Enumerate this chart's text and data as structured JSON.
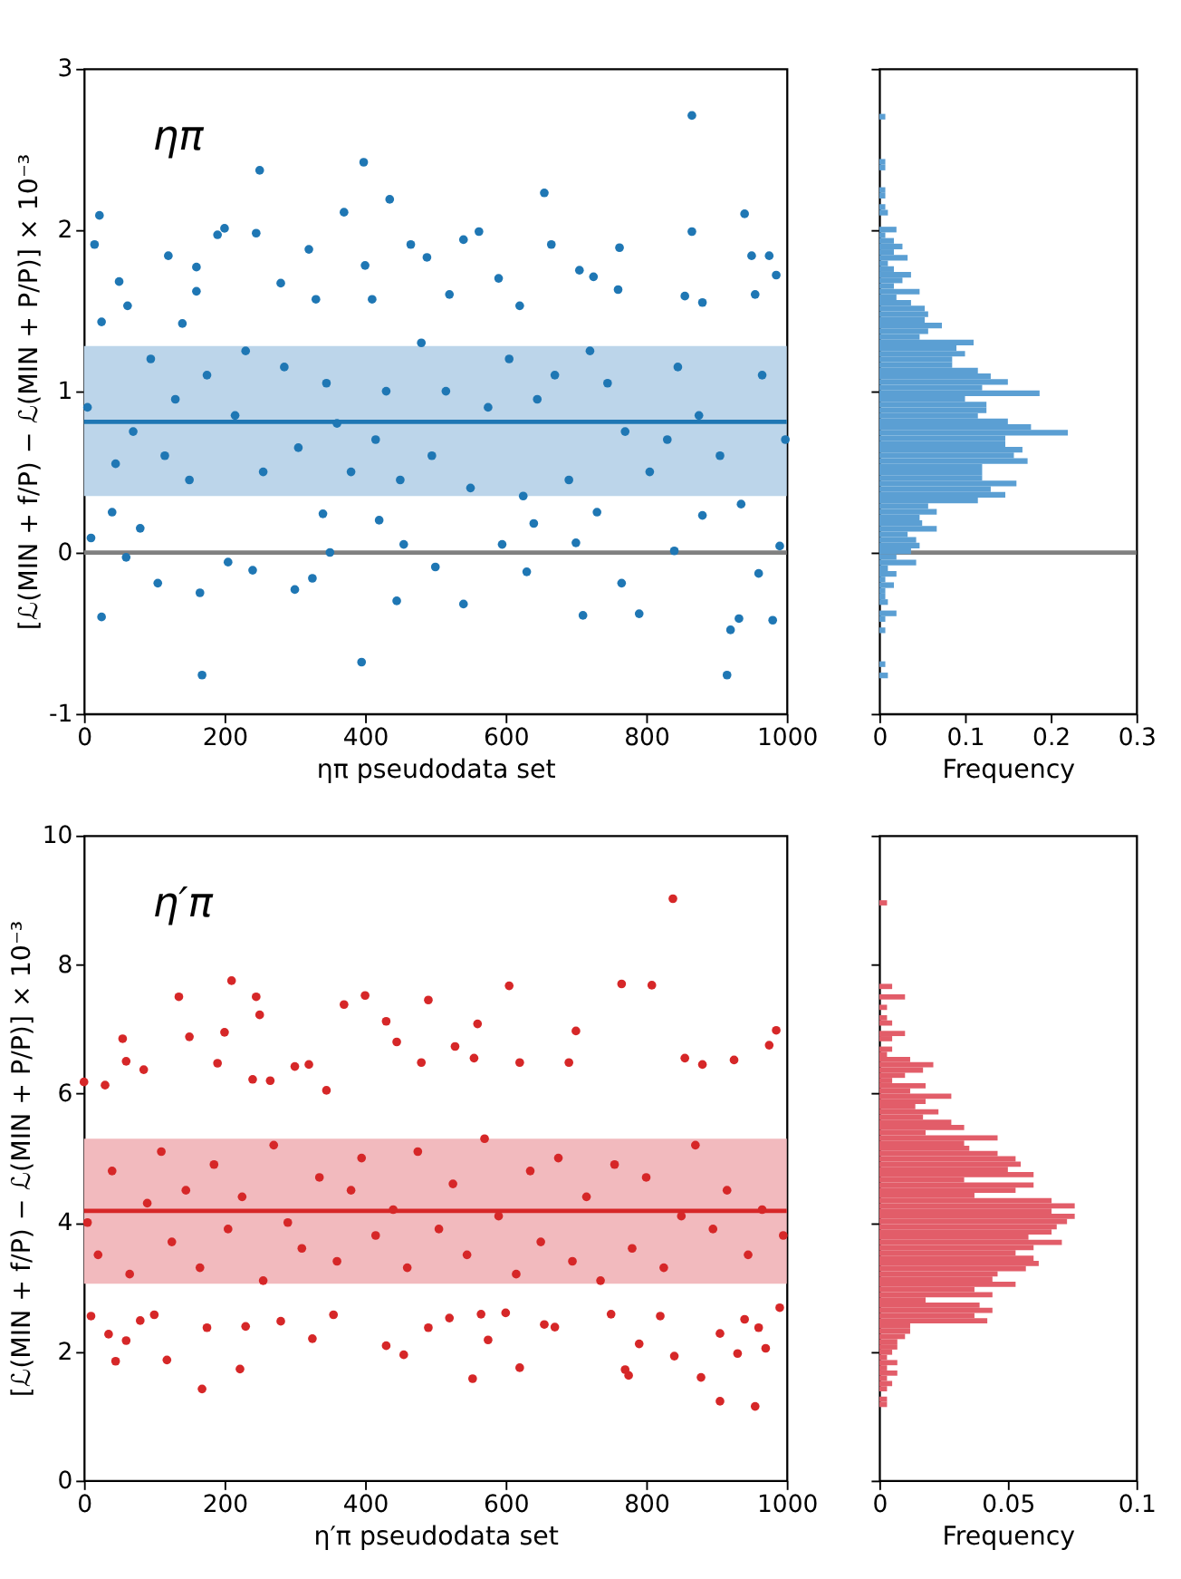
{
  "chart_data": [
    {
      "type": "scatter",
      "annotations": [
        "ηπ"
      ],
      "xlabel": "ηπ pseudodata set",
      "ylabel": "[ℒ(MIN + f/P) − ℒ(MIN + P/P)] × 10⁻³",
      "color": "#1f77b4",
      "marker": "circle",
      "grid": false,
      "xlim": [
        0,
        1000
      ],
      "xticks": [
        0,
        200,
        400,
        600,
        800,
        1000
      ],
      "ylim": [
        -1,
        3
      ],
      "yticks": [
        -1,
        0,
        1,
        2,
        3
      ],
      "bands": [
        {
          "axis": "y",
          "from": 0.35,
          "to": 1.28,
          "color": "#bcd5ea"
        }
      ],
      "ref_lines": [
        {
          "axis": "y",
          "value": 0,
          "color": "#808080"
        },
        {
          "axis": "y",
          "value": 0.81,
          "color": "#1f77b4"
        }
      ],
      "x": [
        865,
        398,
        250,
        435,
        655,
        22,
        370,
        940,
        200,
        190,
        245,
        562,
        865,
        15,
        465,
        540,
        665,
        762,
        320,
        120,
        488,
        950,
        975,
        160,
        400,
        705,
        985,
        50,
        280,
        590,
        725,
        955,
        160,
        520,
        760,
        855,
        62,
        410,
        620,
        880,
        25,
        140,
        330,
        25,
        168,
        165,
        105,
        60,
        300,
        325,
        445,
        395,
        540,
        630,
        710,
        765,
        790,
        915,
        920,
        932,
        960,
        980,
        500,
        240,
        10,
        205,
        350,
        455,
        595,
        700,
        840,
        990,
        640,
        40,
        80,
        340,
        420,
        730,
        880,
        5,
        45,
        70,
        95,
        115,
        130,
        150,
        175,
        215,
        230,
        255,
        285,
        305,
        345,
        360,
        380,
        415,
        430,
        450,
        480,
        495,
        515,
        550,
        575,
        605,
        625,
        645,
        670,
        690,
        720,
        745,
        770,
        805,
        830,
        845,
        875,
        905,
        935,
        965,
        998
      ],
      "values": [
        2.71,
        2.42,
        2.37,
        2.19,
        2.23,
        2.09,
        2.11,
        2.1,
        2.01,
        1.97,
        1.98,
        1.99,
        1.99,
        1.91,
        1.91,
        1.94,
        1.91,
        1.89,
        1.88,
        1.84,
        1.83,
        1.84,
        1.84,
        1.77,
        1.78,
        1.75,
        1.72,
        1.68,
        1.67,
        1.7,
        1.71,
        1.6,
        1.62,
        1.6,
        1.63,
        1.59,
        1.53,
        1.57,
        1.53,
        1.55,
        1.43,
        1.42,
        1.57,
        -0.4,
        -0.76,
        -0.25,
        -0.19,
        -0.03,
        -0.23,
        -0.16,
        -0.3,
        -0.68,
        -0.32,
        -0.12,
        -0.39,
        -0.19,
        -0.38,
        -0.76,
        -0.48,
        -0.41,
        -0.13,
        -0.42,
        -0.09,
        -0.11,
        0.09,
        -0.06,
        0.0,
        0.05,
        0.05,
        0.06,
        0.01,
        0.04,
        0.18,
        0.25,
        0.15,
        0.24,
        0.2,
        0.25,
        0.23,
        0.9,
        0.55,
        0.75,
        1.2,
        0.6,
        0.95,
        0.45,
        1.1,
        0.85,
        1.25,
        0.5,
        1.15,
        0.65,
        1.05,
        0.8,
        0.5,
        0.7,
        1.0,
        0.45,
        1.3,
        0.6,
        1.0,
        0.4,
        0.9,
        1.2,
        0.35,
        0.95,
        1.1,
        0.45,
        1.25,
        1.05,
        0.75,
        0.5,
        0.7,
        1.15,
        0.85,
        0.6,
        0.3,
        1.1,
        0.7
      ]
    },
    {
      "type": "histogram",
      "orientation": "horizontal",
      "xlabel": "Frequency",
      "color": "#5b9fd3",
      "grid": false,
      "tick_labels": "x",
      "xlim": [
        0,
        0.3
      ],
      "xticks": [
        0,
        0.1,
        0.2,
        0.3
      ],
      "ylim": [
        -1,
        3
      ],
      "yticks": [
        {
          "value": -1,
          "label": null
        },
        {
          "value": 0,
          "label": null
        },
        {
          "value": 1,
          "label": null
        },
        {
          "value": 2,
          "label": null
        },
        {
          "value": 3,
          "label": null
        }
      ],
      "ref_lines": [
        {
          "axis": "y",
          "value": 0,
          "color": "#808080"
        }
      ],
      "bins": [
        -0.78,
        -0.745,
        -0.71,
        -0.675,
        -0.64,
        -0.605,
        -0.57,
        -0.535,
        -0.5,
        -0.465,
        -0.43,
        -0.395,
        -0.36,
        -0.325,
        -0.29,
        -0.255,
        -0.22,
        -0.185,
        -0.15,
        -0.115,
        -0.08,
        -0.045,
        -0.01,
        0.025,
        0.06,
        0.095,
        0.13,
        0.165,
        0.2,
        0.235,
        0.27,
        0.305,
        0.34,
        0.375,
        0.41,
        0.445,
        0.48,
        0.515,
        0.55,
        0.585,
        0.62,
        0.655,
        0.69,
        0.725,
        0.76,
        0.795,
        0.83,
        0.865,
        0.9,
        0.935,
        0.97,
        1.005,
        1.04,
        1.075,
        1.11,
        1.145,
        1.18,
        1.215,
        1.25,
        1.285,
        1.32,
        1.355,
        1.39,
        1.425,
        1.46,
        1.495,
        1.53,
        1.565,
        1.6,
        1.635,
        1.67,
        1.705,
        1.74,
        1.775,
        1.81,
        1.845,
        1.88,
        1.915,
        1.95,
        1.985,
        2.02,
        2.055,
        2.09,
        2.125,
        2.16,
        2.195,
        2.23,
        2.265,
        2.3,
        2.335,
        2.37,
        2.405,
        2.44,
        2.475,
        2.51,
        2.545,
        2.58,
        2.615,
        2.65,
        2.685,
        2.72
      ],
      "values": [
        0.01,
        0,
        0.007,
        0,
        0,
        0,
        0,
        0,
        0.007,
        0,
        0.007,
        0.02,
        0,
        0.01,
        0.007,
        0.007,
        0.017,
        0.007,
        0.02,
        0.01,
        0.043,
        0.02,
        0.037,
        0.047,
        0.043,
        0.033,
        0.067,
        0.05,
        0.047,
        0.067,
        0.057,
        0.115,
        0.147,
        0.13,
        0.16,
        0.12,
        0.12,
        0.12,
        0.173,
        0.157,
        0.167,
        0.147,
        0.147,
        0.22,
        0.177,
        0.15,
        0.115,
        0.125,
        0.125,
        0.1,
        0.187,
        0.12,
        0.15,
        0.13,
        0.115,
        0.085,
        0.085,
        0.1,
        0.09,
        0.11,
        0.047,
        0.057,
        0.073,
        0.053,
        0.057,
        0.053,
        0.037,
        0.02,
        0.047,
        0.017,
        0.027,
        0.037,
        0.017,
        0.01,
        0.033,
        0.017,
        0.027,
        0.017,
        0.007,
        0.02,
        0,
        0,
        0.01,
        0.007,
        0,
        0.007,
        0.007,
        0,
        0,
        0,
        0.007,
        0.007,
        0,
        0,
        0,
        0,
        0,
        0,
        0,
        0.007
      ]
    },
    {
      "type": "scatter",
      "annotations": [
        "η′π"
      ],
      "xlabel": "η′π pseudodata set",
      "ylabel": "[ℒ(MIN + f/P) − ℒ(MIN + P/P)] × 10⁻³",
      "color": "#d62728",
      "marker": "circle",
      "grid": false,
      "xlim": [
        0,
        1000
      ],
      "xticks": [
        0,
        200,
        400,
        600,
        800,
        1000
      ],
      "ylim": [
        0,
        10
      ],
      "yticks": [
        0,
        2,
        4,
        6,
        8,
        10
      ],
      "bands": [
        {
          "axis": "y",
          "from": 3.05,
          "to": 5.3,
          "color": "#f2babe"
        }
      ],
      "ref_lines": [
        {
          "axis": "y",
          "value": 4.18,
          "color": "#d62728"
        }
      ],
      "x": [
        838,
        210,
        135,
        245,
        400,
        370,
        490,
        605,
        765,
        808,
        250,
        430,
        560,
        445,
        150,
        200,
        55,
        700,
        985,
        975,
        528,
        555,
        620,
        690,
        60,
        85,
        480,
        855,
        880,
        925,
        300,
        320,
        0,
        30,
        190,
        240,
        265,
        345,
        168,
        553,
        955,
        905,
        222,
        620,
        770,
        775,
        878,
        118,
        45,
        455,
        430,
        840,
        930,
        970,
        325,
        575,
        35,
        60,
        175,
        230,
        490,
        655,
        670,
        790,
        905,
        960,
        10,
        80,
        100,
        280,
        355,
        520,
        565,
        600,
        750,
        820,
        940,
        990,
        5,
        20,
        40,
        65,
        90,
        110,
        125,
        145,
        165,
        185,
        205,
        225,
        255,
        270,
        290,
        310,
        335,
        360,
        380,
        395,
        415,
        440,
        460,
        475,
        505,
        525,
        545,
        570,
        590,
        615,
        635,
        650,
        675,
        695,
        715,
        735,
        755,
        780,
        800,
        825,
        850,
        870,
        895,
        915,
        945,
        965,
        995
      ],
      "values": [
        9.02,
        7.75,
        7.5,
        7.5,
        7.52,
        7.38,
        7.45,
        7.67,
        7.7,
        7.68,
        7.22,
        7.12,
        7.08,
        6.8,
        6.88,
        6.95,
        6.85,
        6.97,
        6.98,
        6.75,
        6.73,
        6.55,
        6.48,
        6.48,
        6.5,
        6.37,
        6.48,
        6.55,
        6.45,
        6.52,
        6.42,
        6.45,
        6.18,
        6.13,
        6.47,
        6.22,
        6.2,
        6.05,
        1.42,
        1.58,
        1.15,
        1.23,
        1.73,
        1.75,
        1.72,
        1.63,
        1.6,
        1.87,
        1.85,
        1.95,
        2.09,
        1.93,
        1.97,
        2.05,
        2.2,
        2.18,
        2.27,
        2.17,
        2.37,
        2.39,
        2.37,
        2.42,
        2.38,
        2.12,
        2.28,
        2.37,
        2.55,
        2.48,
        2.57,
        2.47,
        2.57,
        2.52,
        2.58,
        2.6,
        2.58,
        2.55,
        2.5,
        2.68,
        4.0,
        3.5,
        4.8,
        3.2,
        4.3,
        5.1,
        3.7,
        4.5,
        3.3,
        4.9,
        3.9,
        4.4,
        3.1,
        5.2,
        4.0,
        3.6,
        4.7,
        3.4,
        4.5,
        5.0,
        3.8,
        4.2,
        3.3,
        5.1,
        3.9,
        4.6,
        3.5,
        5.3,
        4.1,
        3.2,
        4.8,
        3.7,
        5.0,
        3.4,
        4.4,
        3.1,
        4.9,
        3.6,
        4.7,
        3.3,
        4.1,
        5.2,
        3.9,
        4.5,
        3.5,
        4.2,
        3.8
      ]
    },
    {
      "type": "histogram",
      "orientation": "horizontal",
      "xlabel": "Frequency",
      "color": "#e25d69",
      "grid": false,
      "tick_labels": "x",
      "xlim": [
        0,
        0.1
      ],
      "xticks": [
        0,
        0.05,
        0.1
      ],
      "ylim": [
        0,
        10
      ],
      "yticks": [
        {
          "value": 0,
          "label": null
        },
        {
          "value": 2,
          "label": null
        },
        {
          "value": 4,
          "label": null
        },
        {
          "value": 6,
          "label": null
        },
        {
          "value": 8,
          "label": null
        },
        {
          "value": 10,
          "label": null
        }
      ],
      "bins": [
        1.14,
        1.221,
        1.302,
        1.383,
        1.464,
        1.545,
        1.626,
        1.707,
        1.788,
        1.869,
        1.95,
        2.031,
        2.112,
        2.193,
        2.274,
        2.355,
        2.436,
        2.517,
        2.598,
        2.679,
        2.76,
        2.841,
        2.922,
        3.003,
        3.084,
        3.165,
        3.246,
        3.327,
        3.408,
        3.489,
        3.57,
        3.651,
        3.732,
        3.813,
        3.894,
        3.975,
        4.056,
        4.137,
        4.218,
        4.299,
        4.38,
        4.461,
        4.542,
        4.623,
        4.704,
        4.785,
        4.866,
        4.947,
        5.028,
        5.109,
        5.19,
        5.271,
        5.352,
        5.433,
        5.514,
        5.595,
        5.676,
        5.757,
        5.838,
        5.919,
        6.0,
        6.081,
        6.162,
        6.243,
        6.324,
        6.405,
        6.486,
        6.567,
        6.648,
        6.729,
        6.81,
        6.891,
        6.972,
        7.053,
        7.134,
        7.215,
        7.296,
        7.377,
        7.458,
        7.539,
        7.62,
        7.701,
        7.782,
        7.863,
        7.944,
        8.025,
        8.106,
        8.187,
        8.268,
        8.349,
        8.43,
        8.511,
        8.592,
        8.673,
        8.754,
        8.835,
        8.916,
        8.997
      ],
      "values": [
        0.003,
        0.003,
        0,
        0.003,
        0.005,
        0.003,
        0.007,
        0.003,
        0.007,
        0.003,
        0.005,
        0.007,
        0.007,
        0.01,
        0.012,
        0.012,
        0.042,
        0.037,
        0.044,
        0.039,
        0.018,
        0.044,
        0.037,
        0.053,
        0.044,
        0.046,
        0.057,
        0.062,
        0.06,
        0.053,
        0.06,
        0.071,
        0.058,
        0.067,
        0.069,
        0.073,
        0.076,
        0.067,
        0.076,
        0.067,
        0.037,
        0.053,
        0.06,
        0.033,
        0.06,
        0.05,
        0.055,
        0.053,
        0.046,
        0.035,
        0.033,
        0.046,
        0.018,
        0.033,
        0.028,
        0.017,
        0.023,
        0.014,
        0.018,
        0.028,
        0.012,
        0.018,
        0.005,
        0.01,
        0.017,
        0.021,
        0.012,
        0.003,
        0.005,
        0,
        0.005,
        0.01,
        0,
        0.005,
        0.003,
        0,
        0.003,
        0,
        0.01,
        0,
        0.005,
        0,
        0,
        0,
        0,
        0,
        0,
        0,
        0,
        0,
        0,
        0,
        0,
        0,
        0,
        0,
        0.003
      ]
    }
  ]
}
